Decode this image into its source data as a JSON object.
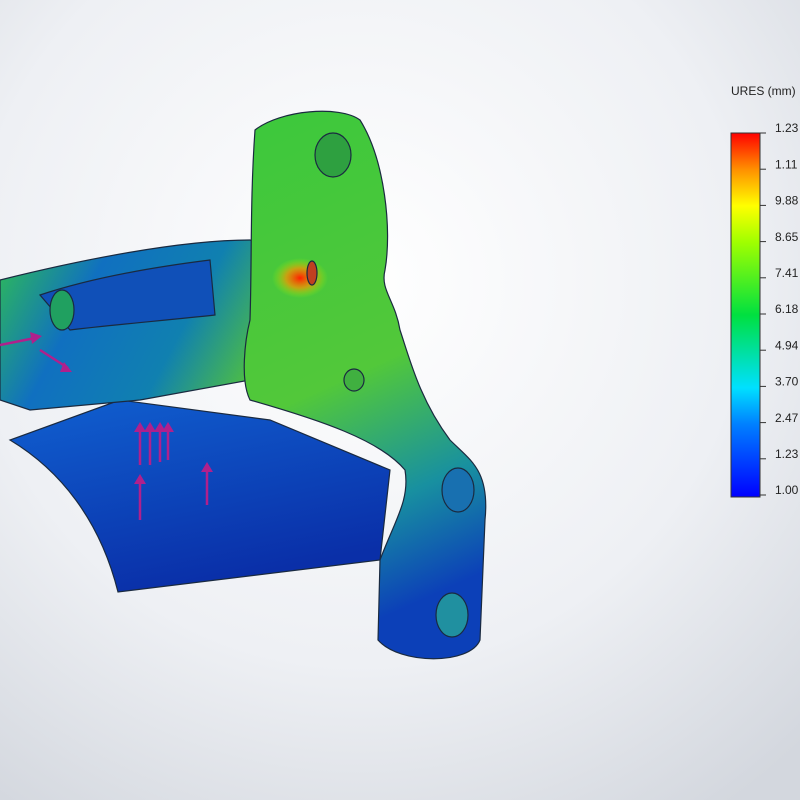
{
  "legend": {
    "title": "URES (mm)",
    "labels": [
      "1.23",
      "1.11",
      "9.88",
      "8.65",
      "7.41",
      "6.18",
      "4.94",
      "3.70",
      "2.47",
      "1.23",
      "1.00"
    ]
  }
}
